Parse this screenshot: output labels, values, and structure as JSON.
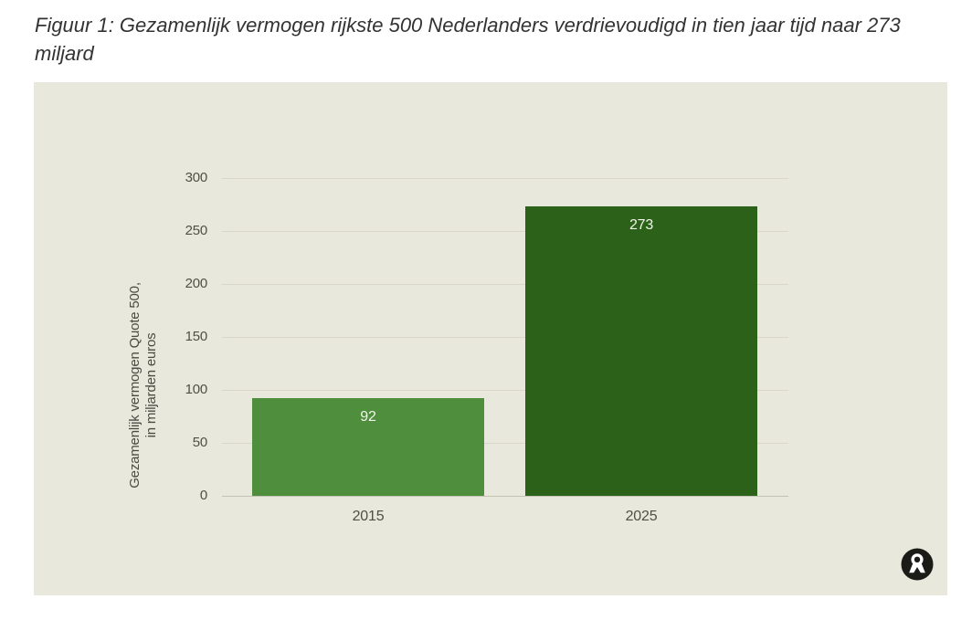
{
  "figure": {
    "title": "Figuur 1: Gezamenlijk vermogen rijkste 500 Nederlanders verdrievoudigd in tien jaar tijd naar 273 miljard"
  },
  "chart_data": {
    "type": "bar",
    "categories": [
      "2015",
      "2025"
    ],
    "values": [
      92,
      273
    ],
    "value_labels": [
      "92",
      "273"
    ],
    "title": "Figuur 1: Gezamenlijk vermogen rijkste 500 Nederlanders verdrievoudigd in tien jaar tijd naar 273 miljard",
    "xlabel": "",
    "ylabel": "Gezamenlijk vermogen Quote 500, in miljarden euros",
    "ylabel_lines": [
      "Gezamenlijk vermogen Quote 500,",
      "in miljarden euros"
    ],
    "yticks": [
      0,
      50,
      100,
      150,
      200,
      250,
      300
    ],
    "ylim": [
      0,
      300
    ],
    "grid": true,
    "legend_position": "none",
    "colors": {
      "bars": [
        "#4f8e3d",
        "#2b6119"
      ],
      "panel_background": "#e9e8dc",
      "gridline": "#d8d7c8",
      "axis_line": "#c3c3b5",
      "tick_text": "#4f4f46",
      "value_label_text": "#f2f5ea",
      "title_text": "#333333",
      "logo": "#1b1b17"
    }
  },
  "branding": {
    "logo_icon": "oxfam-novib-logo"
  }
}
